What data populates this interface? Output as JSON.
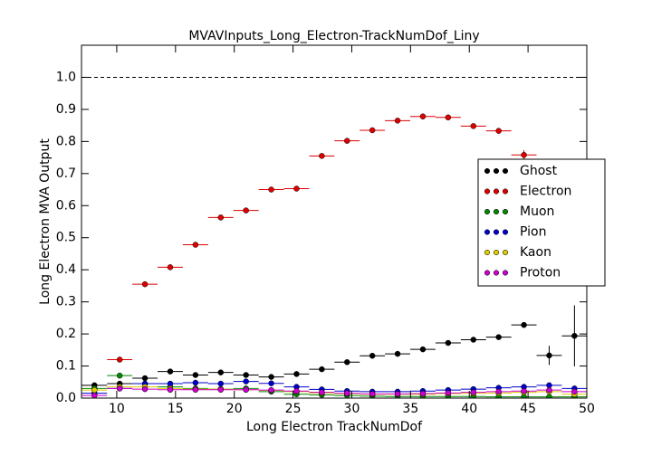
{
  "chart_data": {
    "type": "scatter",
    "title": "MVAVInputs_Long_Electron-TrackNumDof_Liny",
    "x_label": "Long Electron TrackNumDof",
    "y_label": "Long Electron MVA Output",
    "xlim": [
      7,
      50
    ],
    "ylim": [
      0,
      1.1
    ],
    "xticks": [
      10,
      15,
      20,
      25,
      30,
      35,
      40,
      45,
      50
    ],
    "yticks": [
      {
        "value": 0,
        "label": "0.0"
      },
      0.1,
      0.2,
      0.3,
      0.4,
      0.5,
      0.6,
      0.7,
      0.8,
      0.9,
      {
        "value": 1,
        "label": "1.0"
      }
    ],
    "hline": 1,
    "legend": "right",
    "x": [
      8.1,
      10.25,
      12.4,
      14.55,
      16.7,
      18.85,
      21,
      23.15,
      25.3,
      27.45,
      29.6,
      31.75,
      33.9,
      36.05,
      38.2,
      40.35,
      42.5,
      44.65,
      46.8,
      48.95
    ],
    "xerr": 1.075,
    "series": [
      {
        "name": "Ghost",
        "color": "#000000",
        "values": [
          0.04,
          0.045,
          0.062,
          0.083,
          0.072,
          0.08,
          0.072,
          0.066,
          0.075,
          0.09,
          0.112,
          0.132,
          0.138,
          0.152,
          0.172,
          0.182,
          0.19,
          0.228,
          0.133,
          0.194
        ],
        "yerr": [
          0.003,
          0.003,
          0.003,
          0.003,
          0.003,
          0.003,
          0.003,
          0.003,
          0.003,
          0.003,
          0.003,
          0.003,
          0.003,
          0.003,
          0.004,
          0.004,
          0.005,
          0.008,
          0.03,
          0.095
        ]
      },
      {
        "name": "Electron",
        "color": "#dd0000",
        "values": [
          null,
          0.12,
          0.355,
          0.408,
          0.478,
          0.563,
          0.585,
          0.65,
          0.653,
          0.755,
          0.802,
          0.835,
          0.865,
          0.878,
          0.875,
          0.848,
          0.833,
          0.758,
          null,
          null
        ],
        "yerr": [
          null,
          0.005,
          0.006,
          0.006,
          0.005,
          0.005,
          0.005,
          0.005,
          0.005,
          0.005,
          0.005,
          0.005,
          0.005,
          0.005,
          0.005,
          0.006,
          0.007,
          0.015,
          null,
          null
        ]
      },
      {
        "name": "Muon",
        "color": "#008800",
        "values": [
          0.03,
          0.07,
          0.045,
          0.035,
          0.03,
          0.028,
          0.03,
          0.02,
          0.012,
          0.01,
          0.008,
          0.006,
          0.005,
          0.005,
          0.005,
          0.005,
          0.004,
          0.004,
          0.004,
          0.004
        ]
      },
      {
        "name": "Pion",
        "color": "#0000cc",
        "values": [
          0.015,
          0.03,
          0.045,
          0.045,
          0.048,
          0.045,
          0.052,
          0.046,
          0.035,
          0.027,
          0.022,
          0.02,
          0.02,
          0.022,
          0.025,
          0.028,
          0.032,
          0.035,
          0.04,
          0.03
        ]
      },
      {
        "name": "Kaon",
        "color": "#ddcc00",
        "values": [
          0.025,
          0.035,
          0.035,
          0.03,
          0.028,
          0.028,
          0.026,
          0.024,
          0.02,
          0.016,
          0.014,
          0.012,
          0.012,
          0.012,
          0.014,
          0.015,
          0.016,
          0.018,
          0.02,
          0.012
        ]
      },
      {
        "name": "Proton",
        "color": "#cc00cc",
        "values": [
          0.008,
          0.03,
          0.028,
          0.026,
          0.026,
          0.026,
          0.026,
          0.025,
          0.022,
          0.018,
          0.015,
          0.013,
          0.013,
          0.014,
          0.016,
          0.018,
          0.02,
          0.022,
          0.025,
          0.02
        ]
      }
    ]
  }
}
